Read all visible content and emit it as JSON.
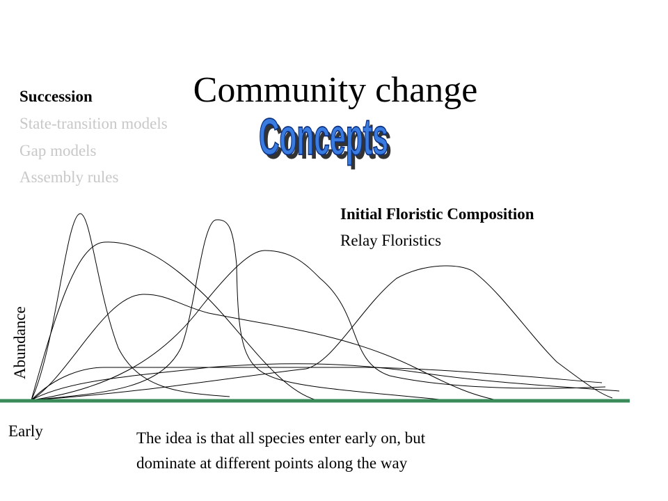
{
  "title": "Community change",
  "topics": {
    "current": "Succession",
    "others": [
      "State-transition models",
      "Gap models",
      "Assembly rules"
    ]
  },
  "badge": "Concepts",
  "models": {
    "current": "Initial Floristic Composition",
    "other": "Relay Floristics"
  },
  "axis": {
    "y_label": "Abundance",
    "x_label": "Early"
  },
  "caption": [
    "The idea is that all species enter early on, but",
    "dominate at different points along the way"
  ]
}
